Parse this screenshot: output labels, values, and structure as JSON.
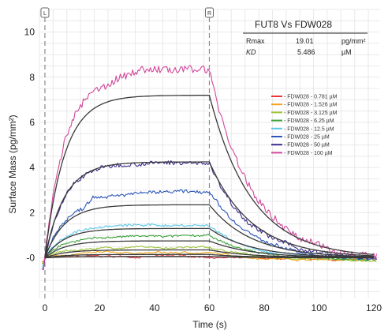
{
  "chart_data": {
    "type": "line",
    "title": "FUT8 Vs FDW028",
    "xlabel": "Time (s)",
    "ylabel": "Surface Mass (pg/mm²)",
    "xlim": [
      -2,
      122
    ],
    "ylim": [
      -1.8,
      11
    ],
    "x_ticks": [
      0,
      20,
      40,
      60,
      80,
      100,
      120
    ],
    "y_ticks": [
      0,
      2,
      4,
      6,
      8,
      10
    ],
    "y_tick_labels": [
      "-0",
      "2",
      "4",
      "6",
      "8",
      "10"
    ],
    "grid": true,
    "legend_position": "right",
    "association_end": 60,
    "markers": [
      {
        "label": "L",
        "x": 0
      },
      {
        "label": "R",
        "x": 60
      }
    ],
    "fit_table": {
      "rows": [
        {
          "name": "Rmax",
          "value": "19.01",
          "unit": "pg/mm²"
        },
        {
          "name": "KD",
          "value": "5.486",
          "unit": "µM"
        }
      ]
    },
    "fit_color": "#3a3a3a",
    "series": [
      {
        "name": "- FDW028 - 0.781 µM",
        "color": "#e8343a",
        "plateau": 0.05,
        "req": 0.06
      },
      {
        "name": "- FDW028 - 1.526 µM",
        "color": "#f2a31c",
        "plateau": 0.22,
        "req": 0.15
      },
      {
        "name": "- FDW028 - 3.125 µM",
        "color": "#9cc43a",
        "plateau": 0.45,
        "req": 0.35
      },
      {
        "name": "- FDW028 - 6.25 µM",
        "color": "#3aa23a",
        "plateau": 0.95,
        "req": 0.75
      },
      {
        "name": "- FDW028 - 12.5 µM",
        "color": "#5cc6e6",
        "plateau": 1.45,
        "req": 1.3
      },
      {
        "name": "- FDW028 - 25 µM",
        "color": "#2c56b8",
        "plateau": 2.55,
        "req": 2.35
      },
      {
        "name": "- FDW028 - 50 µM",
        "color": "#3c2c8c",
        "plateau": 4.2,
        "req": 4.25
      },
      {
        "name": "- FDW028 - 100 µM",
        "color": "#d2479a",
        "plateau": 8.0,
        "req": 7.2
      }
    ]
  }
}
